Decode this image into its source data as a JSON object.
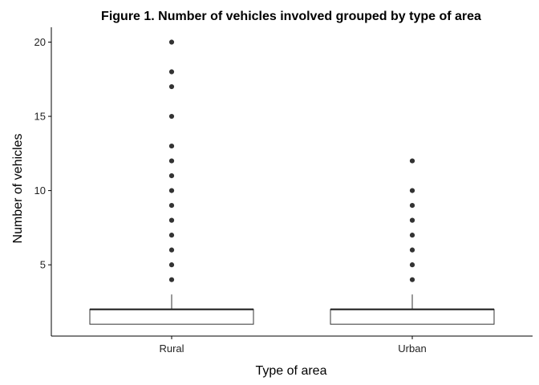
{
  "chart_data": {
    "type": "boxplot",
    "title": "Figure 1. Number of vehicles involved grouped by type of area",
    "xlabel": "Type of area",
    "ylabel": "Number of vehicles",
    "categories": [
      "Rural",
      "Urban"
    ],
    "ylim": [
      0.2,
      21
    ],
    "yticks": [
      5,
      10,
      15,
      20
    ],
    "grid": false,
    "boxes": [
      {
        "category": "Rural",
        "min": 1,
        "q1": 1,
        "median": 2,
        "q3": 2,
        "max": 3,
        "outliers": [
          4,
          5,
          6,
          7,
          8,
          9,
          10,
          11,
          12,
          13,
          15,
          17,
          18,
          20
        ]
      },
      {
        "category": "Urban",
        "min": 1,
        "q1": 1,
        "median": 2,
        "q3": 2,
        "max": 3,
        "outliers": [
          4,
          5,
          6,
          7,
          8,
          9,
          10,
          12
        ]
      }
    ]
  }
}
